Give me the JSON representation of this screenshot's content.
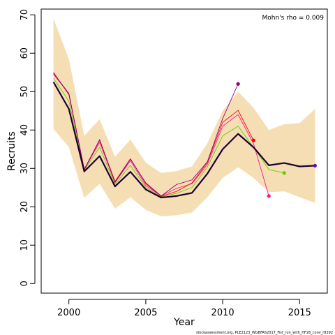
{
  "chart_data": {
    "type": "line",
    "xlabel": "Year",
    "ylabel": "Recruits",
    "annotation": "Mohn's rho = 0.009",
    "footer": "stockassessment.org, PLE2123_WGBFAS2017_Fist_run_with_HF26_conv_r8292",
    "xlim": [
      1998.2,
      2016.8
    ],
    "ylim": [
      -2.5,
      71.5
    ],
    "x_ticks": [
      2000,
      2005,
      2010,
      2015
    ],
    "y_ticks": [
      0,
      10,
      20,
      30,
      40,
      50,
      60,
      70
    ],
    "grid": false,
    "confidence_band": {
      "x": [
        1999,
        2000,
        2001,
        2002,
        2003,
        2004,
        2005,
        2006,
        2007,
        2008,
        2009,
        2010,
        2011,
        2012,
        2013,
        2014,
        2015,
        2016
      ],
      "upper": [
        69,
        58.5,
        38.5,
        42.8,
        33,
        37.5,
        31.5,
        28.8,
        29.3,
        30.5,
        36.5,
        45,
        50,
        45.8,
        40,
        41.5,
        41.8,
        45.5
      ],
      "lower": [
        40.3,
        35.5,
        22.3,
        26,
        19.5,
        22.5,
        19.2,
        17.5,
        17.8,
        18.5,
        22.5,
        27.5,
        30.3,
        27.5,
        23.8,
        24,
        22.5,
        21
      ],
      "color": "#f5deb3"
    },
    "series": [
      {
        "color": "#1a0033",
        "width": 2.2,
        "x": [
          1999,
          2000,
          2001,
          2002,
          2003,
          2004,
          2005,
          2006,
          2007,
          2008,
          2009,
          2010,
          2011,
          2012,
          2013,
          2014,
          2015,
          2016
        ],
        "values": [
          52.5,
          45.5,
          29.2,
          33.2,
          25.3,
          29.1,
          24.5,
          22.4,
          22.8,
          23.6,
          28.6,
          35,
          39,
          35.5,
          30.8,
          31.4,
          30.5,
          30.7
        ]
      },
      {
        "color": "#66cc00",
        "width": 0.9,
        "x": [
          1999,
          2000,
          2001,
          2002,
          2003,
          2004,
          2005,
          2006,
          2007,
          2008,
          2009,
          2010,
          2011,
          2012,
          2013,
          2014
        ],
        "values": [
          53.5,
          47.5,
          29.5,
          35.5,
          25.8,
          30.8,
          25,
          22.6,
          23.5,
          25,
          30.3,
          38.5,
          41,
          35.5,
          29.7,
          28.8
        ]
      },
      {
        "color": "#ff1493",
        "width": 0.9,
        "x": [
          1999,
          2000,
          2001,
          2002,
          2003,
          2004,
          2005,
          2006,
          2007,
          2008,
          2009,
          2010,
          2011,
          2012,
          2013
        ],
        "values": [
          54.5,
          49.5,
          29.7,
          36.8,
          26.3,
          32,
          25.5,
          22.8,
          24.8,
          26,
          31,
          41,
          44,
          36.5,
          22.8
        ]
      },
      {
        "color": "#ff0000",
        "width": 0.9,
        "x": [
          1999,
          2000,
          2001,
          2002,
          2003,
          2004,
          2005,
          2006,
          2007,
          2008,
          2009,
          2010,
          2011,
          2012
        ],
        "values": [
          55,
          49.2,
          29.8,
          37.3,
          26.6,
          32.5,
          26,
          22.7,
          24,
          26.2,
          31.5,
          42,
          45.1,
          37.3
        ]
      },
      {
        "color": "#8b0080",
        "width": 0.9,
        "x": [
          1999,
          2000,
          2001,
          2002,
          2003,
          2004,
          2005,
          2006,
          2007,
          2008,
          2009,
          2010,
          2011
        ],
        "values": [
          54.8,
          49.5,
          29.6,
          37.5,
          26.3,
          32.4,
          26.2,
          22.8,
          25.8,
          27,
          31.7,
          43,
          52
        ]
      }
    ]
  }
}
